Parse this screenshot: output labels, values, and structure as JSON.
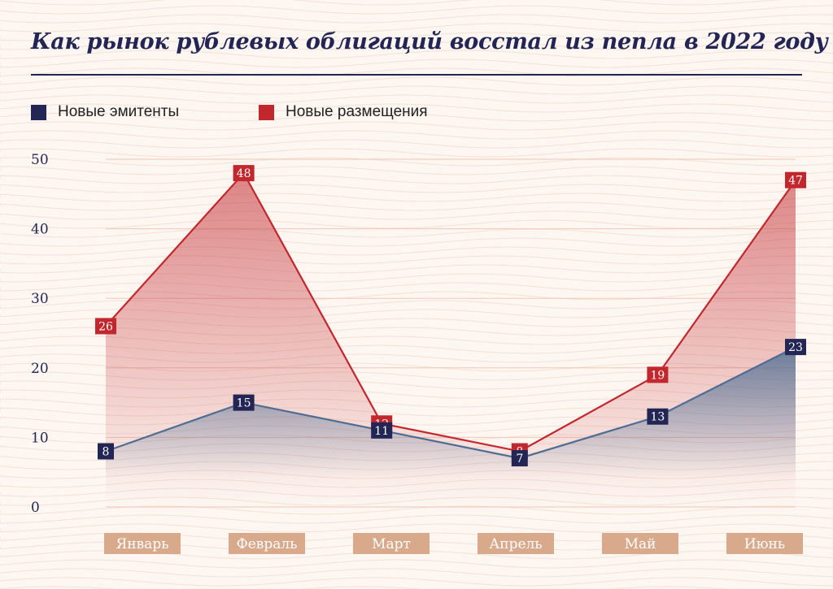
{
  "title": "Как рынок рублевых облигаций восстал из пепла в 2022 году",
  "colors": {
    "navy": "#232654",
    "red": "#c1272d",
    "navy_line": "#4f6d93",
    "category_box": "#d9a98c",
    "grid": "#f0c7b6"
  },
  "chart_data": {
    "type": "area",
    "categories": [
      "Январь",
      "Февраль",
      "Март",
      "Апрель",
      "Май",
      "Июнь"
    ],
    "series": [
      {
        "name": "Новые эмитенты",
        "values": [
          8,
          15,
          11,
          7,
          13,
          23
        ],
        "color": "#232654"
      },
      {
        "name": "Новые размещения",
        "values": [
          26,
          48,
          12,
          8,
          19,
          47
        ],
        "color": "#c1272d"
      }
    ],
    "ylim": [
      0,
      50
    ],
    "yticks": [
      "0",
      "10",
      "20",
      "30",
      "40",
      "50"
    ],
    "grid": true,
    "legend": "top-left",
    "xlabel": "",
    "ylabel": ""
  }
}
